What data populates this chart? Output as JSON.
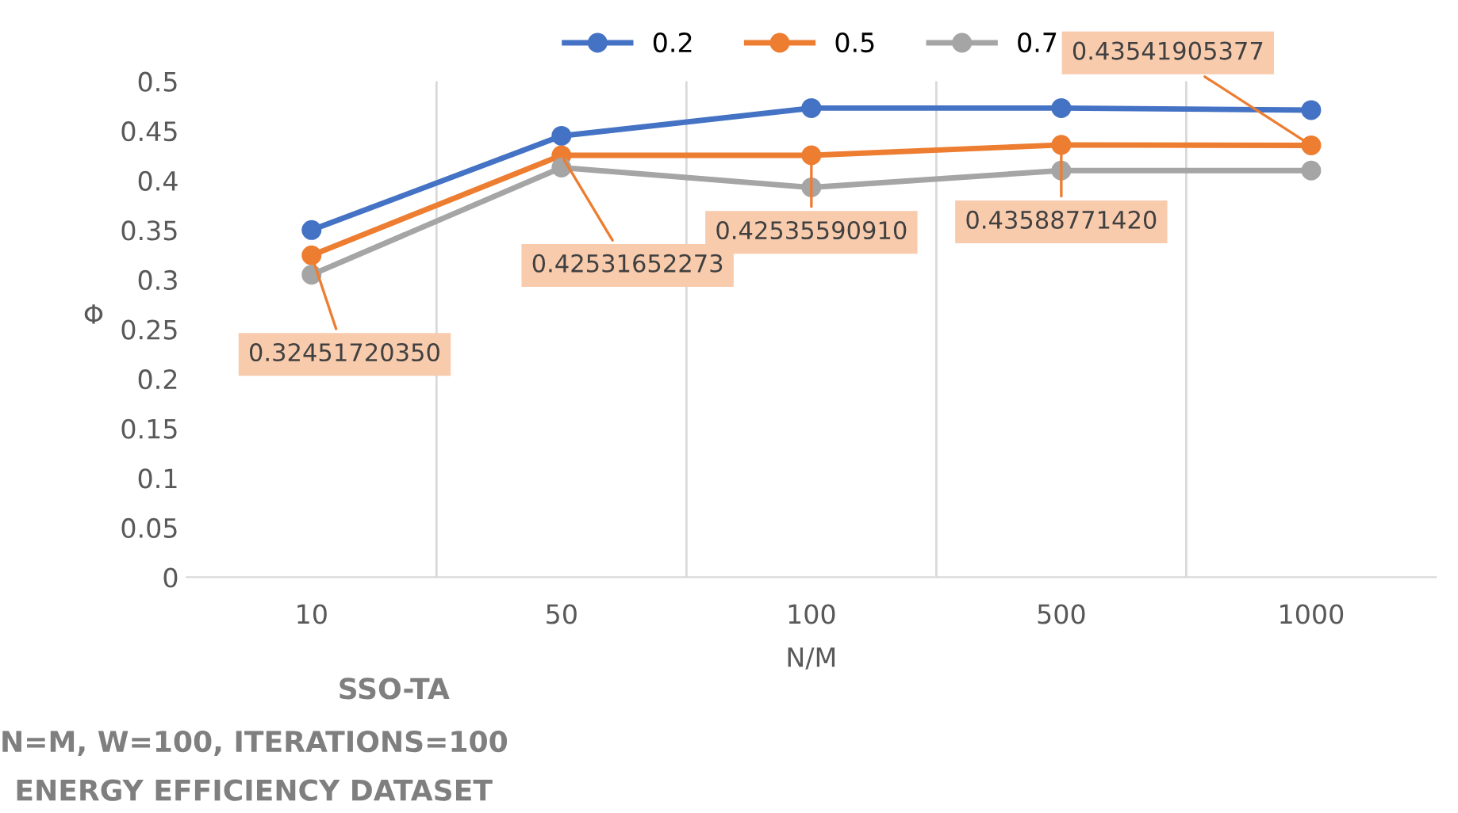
{
  "chart_data": {
    "type": "line",
    "xlabel": "N/M",
    "ylabel": "Φ",
    "categories": [
      "10",
      "50",
      "100",
      "500",
      "1000"
    ],
    "series": [
      {
        "name": "0.2",
        "color": "#4472c4",
        "values": [
          0.35,
          0.445,
          0.473,
          0.473,
          0.471
        ]
      },
      {
        "name": "0.5",
        "color": "#ed7d31",
        "values": [
          0.3245172035,
          0.42531652273,
          0.4253559091,
          0.4358877142,
          0.43541905377
        ],
        "value_labels": [
          "0.32451720350",
          "0.42531652273",
          "0.42535590910",
          "0.43588771420",
          "0.43541905377"
        ]
      },
      {
        "name": "0.7",
        "color": "#a5a5a5",
        "values": [
          0.305,
          0.413,
          0.393,
          0.41,
          0.41
        ]
      }
    ],
    "ylim": [
      0,
      0.5
    ],
    "yticks": [
      0,
      0.05,
      0.1,
      0.15,
      0.2,
      0.25,
      0.3,
      0.35,
      0.4,
      0.45,
      0.5
    ],
    "grid": "x",
    "legend": "top",
    "marker": "circle",
    "line_style": "solid",
    "annotations": [
      "SSO-TA",
      "N=M, W=100, ITERATIONS=100",
      "ENERGY EFFICIENCY DATASET"
    ]
  }
}
